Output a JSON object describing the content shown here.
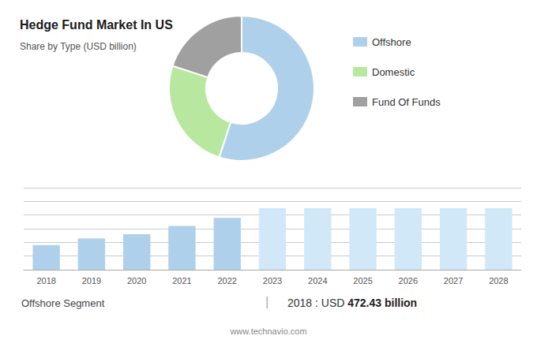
{
  "chart_data": [
    {
      "type": "pie",
      "title": "Hedge Fund Market In US",
      "subtitle": "Share by Type (USD billion)",
      "categories": [
        "Offshore",
        "Domestic",
        "Fund Of Funds"
      ],
      "values": [
        55,
        25,
        20
      ],
      "colors": [
        "#afd0ea",
        "#b8e8a0",
        "#a0a0a0"
      ],
      "legend": "upper right"
    },
    {
      "type": "bar",
      "categories": [
        "2018",
        "2019",
        "2020",
        "2021",
        "2022",
        "2023",
        "2024",
        "2025",
        "2026",
        "2027",
        "2028"
      ],
      "values": [
        0.58,
        0.63,
        0.66,
        0.72,
        0.78,
        0.85,
        0.85,
        0.85,
        0.85,
        0.85,
        0.85
      ],
      "colors": [
        "#afd0ea",
        "#afd0ea",
        "#afd0ea",
        "#afd0ea",
        "#afd0ea",
        "#d0e8f8",
        "#d0e8f8",
        "#d0e8f8",
        "#d0e8f8",
        "#d0e8f8",
        "#d0e8f8"
      ],
      "ylim": [
        0.4,
        1.0
      ],
      "yticks": [
        0.4,
        0.5,
        0.6,
        0.7,
        0.8,
        0.9,
        1.0
      ],
      "grid": true,
      "tick_labels": "x",
      "annotations": [
        "Offshore Segment",
        "|",
        "2018 : USD ",
        "472.43 billion",
        "www.technavio.com"
      ]
    }
  ]
}
